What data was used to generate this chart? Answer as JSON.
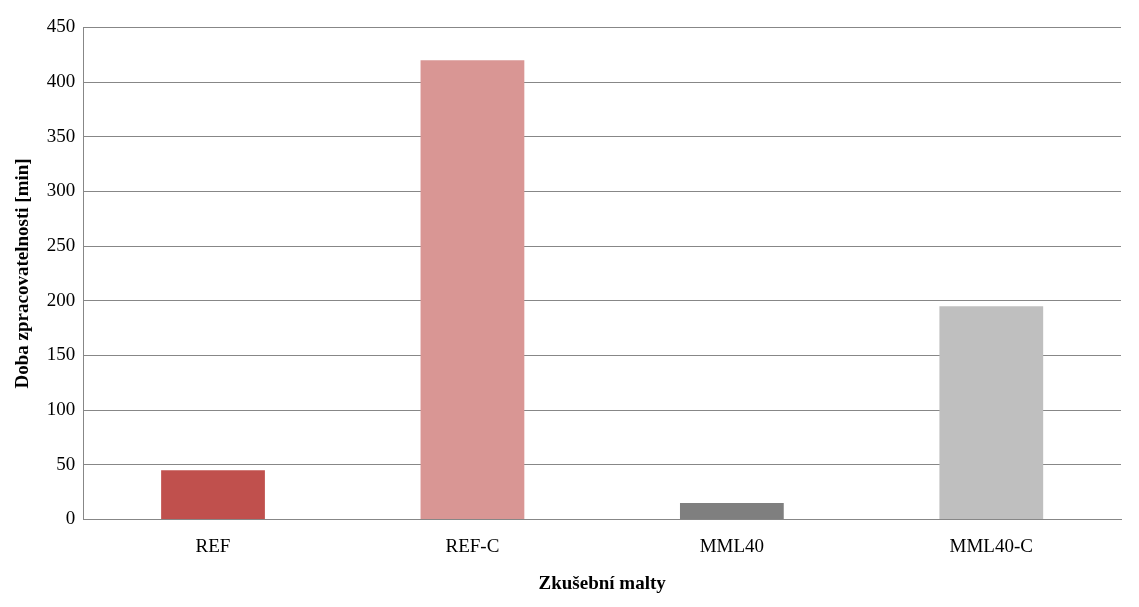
{
  "chart_data": {
    "type": "bar",
    "xlabel": "Zkušební malty",
    "ylabel": "Doba zpracovatelnosti [min]",
    "categories": [
      "REF",
      "REF-C",
      "MML40",
      "MML40-C"
    ],
    "values": [
      45,
      420,
      15,
      195
    ],
    "colors": [
      "#c0504d",
      "#d99694",
      "#7f7f7f",
      "#bfbfbf"
    ],
    "ylim": [
      0,
      450
    ],
    "yticks": [
      0,
      50,
      100,
      150,
      200,
      250,
      300,
      350,
      400,
      450
    ],
    "grid": "y",
    "legend": false
  }
}
